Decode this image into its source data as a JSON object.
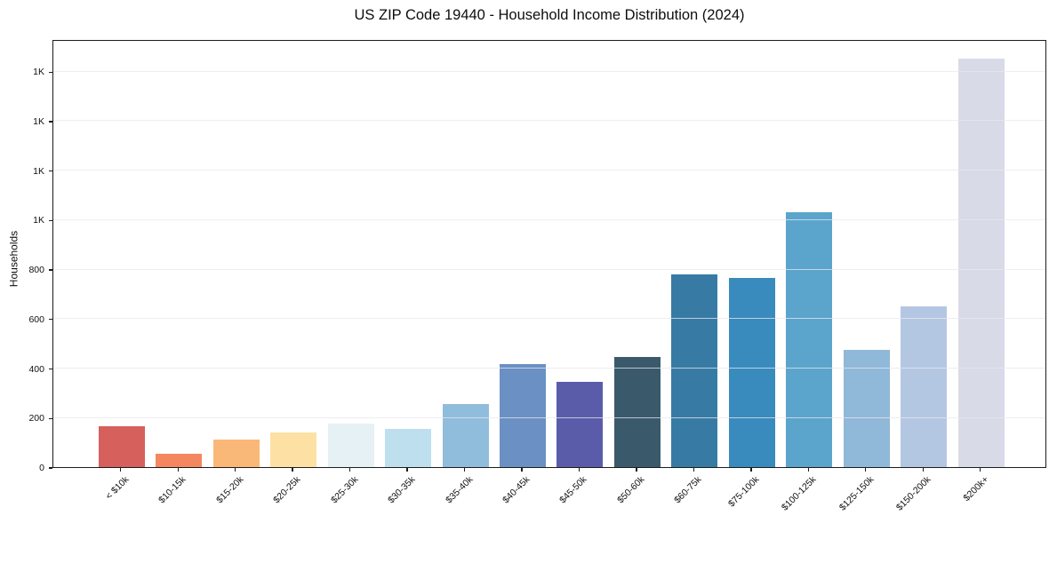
{
  "title": "US ZIP Code 19440 - Household Income Distribution (2024)",
  "chart_data": {
    "type": "bar",
    "title": "US ZIP Code 19440 - Household Income Distribution (2024)",
    "xlabel": "",
    "ylabel": "Households",
    "categories": [
      "< $10k",
      "$10-15k",
      "$15-20k",
      "$20-25k",
      "$25-30k",
      "$30-35k",
      "$35-40k",
      "$40-45k",
      "$45-50k",
      "$50-60k",
      "$60-75k",
      "$75-100k",
      "$100-125k",
      "$125-150k",
      "$150-200k",
      "$200k+"
    ],
    "values": [
      165,
      55,
      110,
      140,
      175,
      155,
      255,
      415,
      345,
      445,
      780,
      765,
      1030,
      475,
      650,
      1650
    ],
    "bar_colors": [
      "#d6605c",
      "#f4875f",
      "#f9b877",
      "#fde1a4",
      "#e6f1f5",
      "#bedfee",
      "#90bddc",
      "#6b90c3",
      "#5a5caa",
      "#3a5a6c",
      "#377ba5",
      "#398abd",
      "#5ba4cb",
      "#90b8d8",
      "#b4c7e2",
      "#d9dae8"
    ],
    "ylim": [
      0,
      1730
    ],
    "yticks": [
      {
        "value": 0,
        "label": "0"
      },
      {
        "value": 200,
        "label": "200"
      },
      {
        "value": 400,
        "label": "400"
      },
      {
        "value": 600,
        "label": "600"
      },
      {
        "value": 800,
        "label": "800"
      },
      {
        "value": 1000,
        "label": "1K"
      },
      {
        "value": 1200,
        "label": "1K"
      },
      {
        "value": 1400,
        "label": "1K"
      },
      {
        "value": 1600,
        "label": "1K"
      }
    ],
    "grid": "horizontal",
    "legend": "none",
    "background_color": "#ffffff",
    "spine_color": "#1c1c1c",
    "grid_color": "#e7e7f0",
    "x_tick_rotation_deg": 45
  }
}
